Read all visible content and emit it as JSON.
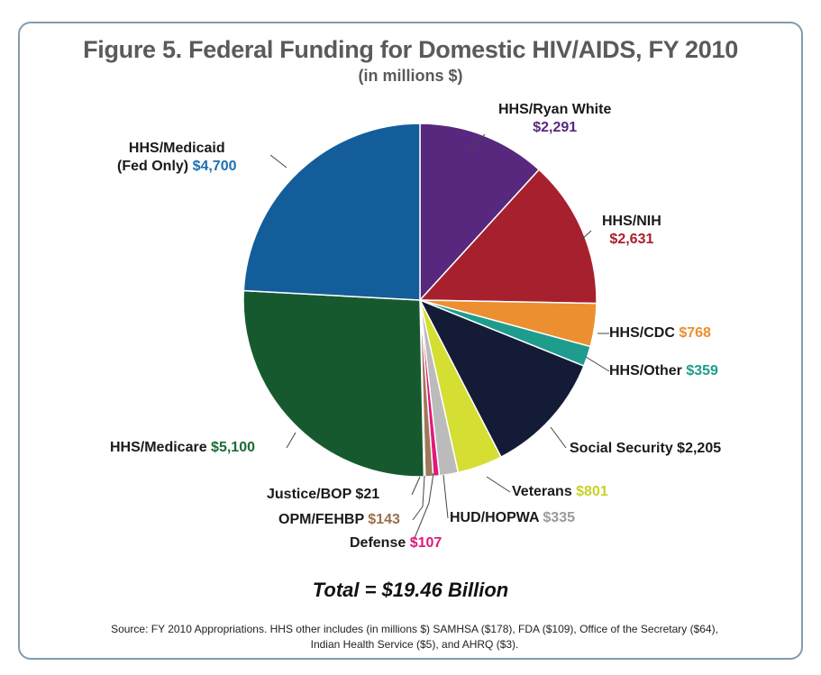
{
  "chart_data": {
    "type": "pie",
    "title": "Figure 5. Federal Funding for Domestic HIV/AIDS, FY 2010",
    "subtitle": "(in millions $)",
    "slices": [
      {
        "label": "HHS/Ryan White",
        "value_text": "$2,291",
        "value": 2291,
        "color": "#57287e",
        "label_color": "#57287e"
      },
      {
        "label": "HHS/NIH",
        "value_text": "$2,631",
        "value": 2631,
        "color": "#a7202d",
        "label_color": "#a7202d"
      },
      {
        "label": "HHS/CDC",
        "value_text": "$768",
        "value": 768,
        "color": "#ec8f31",
        "label_color": "#ec8f31"
      },
      {
        "label": "HHS/Other",
        "value_text": "$359",
        "value": 359,
        "color": "#1e9c8e",
        "label_color": "#1e9c8e"
      },
      {
        "label": "Social Security",
        "value_text": "$2,205",
        "value": 2205,
        "color": "#141b36",
        "label_color": "#1a1a1a"
      },
      {
        "label": "Veterans",
        "value_text": "$801",
        "value": 801,
        "color": "#d5de32",
        "label_color": "#c9d12a"
      },
      {
        "label": "HUD/HOPWA",
        "value_text": "$335",
        "value": 335,
        "color": "#bbbbbb",
        "label_color": "#9a9a9a"
      },
      {
        "label": "Defense",
        "value_text": "$107",
        "value": 107,
        "color": "#e0197a",
        "label_color": "#e0197a"
      },
      {
        "label": "OPM/FEHBP",
        "value_text": "$143",
        "value": 143,
        "color": "#a0785a",
        "label_color": "#9c6f4a"
      },
      {
        "label": "Justice/BOP",
        "value_text": "$21",
        "value": 21,
        "color": "#444444",
        "label_color": "#1a1a1a"
      },
      {
        "label": "HHS/Medicare",
        "value_text": "$5,100",
        "value": 5100,
        "color": "#17592f",
        "label_color": "#1c6b36"
      },
      {
        "label": "HHS/Medicaid\n(Fed Only)",
        "value_text": "$4,700",
        "value": 4700,
        "color": "#145d9b",
        "label_color": "#1f6fb0"
      }
    ]
  },
  "total_text": "Total = $19.46 Billion",
  "source_text": "Source: FY 2010 Appropriations. HHS other includes (in millions $) SAMHSA ($178), FDA ($109), Office of the Secretary ($64), Indian Health Service ($5), and AHRQ ($3)."
}
